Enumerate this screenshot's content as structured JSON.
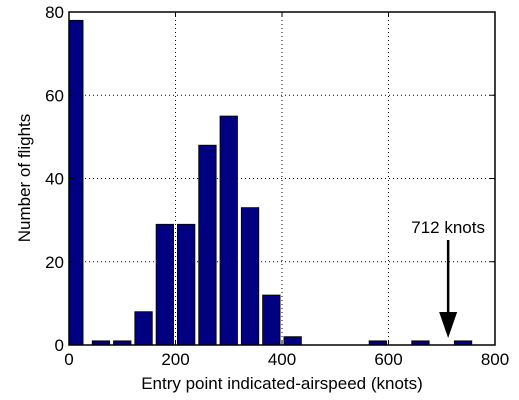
{
  "chart_data": {
    "type": "bar",
    "title": "",
    "xlabel": "Entry point indicated-airspeed (knots)",
    "ylabel": "Number of flights",
    "xlim": [
      0,
      800
    ],
    "ylim": [
      0,
      80
    ],
    "xticks": [
      0,
      200,
      400,
      600,
      800
    ],
    "yticks": [
      0,
      20,
      40,
      60,
      80
    ],
    "grid": true,
    "bar_color": "#000080",
    "bin_width": 40,
    "bins": [
      {
        "x": 10,
        "count": 78
      },
      {
        "x": 60,
        "count": 1
      },
      {
        "x": 100,
        "count": 1
      },
      {
        "x": 140,
        "count": 8
      },
      {
        "x": 180,
        "count": 29
      },
      {
        "x": 220,
        "count": 29
      },
      {
        "x": 260,
        "count": 48
      },
      {
        "x": 300,
        "count": 55
      },
      {
        "x": 340,
        "count": 33
      },
      {
        "x": 380,
        "count": 12
      },
      {
        "x": 420,
        "count": 2
      },
      {
        "x": 460,
        "count": 0
      },
      {
        "x": 500,
        "count": 0
      },
      {
        "x": 540,
        "count": 0
      },
      {
        "x": 580,
        "count": 1
      },
      {
        "x": 620,
        "count": 0
      },
      {
        "x": 660,
        "count": 1
      },
      {
        "x": 700,
        "count": 0
      },
      {
        "x": 740,
        "count": 1
      },
      {
        "x": 780,
        "count": 0
      }
    ],
    "annotation": {
      "text": "712 knots",
      "x": 712,
      "y": 9
    }
  }
}
